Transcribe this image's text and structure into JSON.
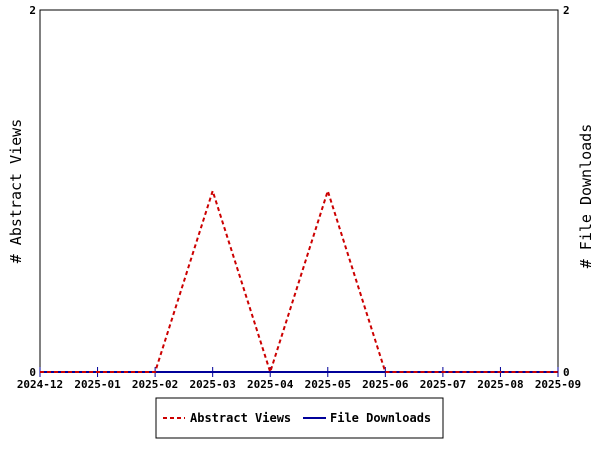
{
  "chart_data": {
    "type": "line",
    "x": [
      "2024-12",
      "2025-01",
      "2025-02",
      "2025-03",
      "2025-04",
      "2025-05",
      "2025-06",
      "2025-07",
      "2025-08",
      "2025-09"
    ],
    "x_tick_labels": [
      "2024-12",
      "2025-01",
      "2025-02",
      "2025-03",
      "2025-04",
      "2025-05",
      "2025-06",
      "2025-07",
      "2025-08",
      "2025-09"
    ],
    "series": [
      {
        "name": "Abstract Views",
        "values": [
          0,
          0,
          0,
          1,
          0,
          1,
          0,
          0,
          0,
          0
        ],
        "color": "#cc0000",
        "line_style": "dashed",
        "axis": "left"
      },
      {
        "name": "File Downloads",
        "values": [
          0,
          0,
          0,
          0,
          0,
          0,
          0,
          0,
          0,
          0
        ],
        "color": "#000099",
        "line_style": "solid",
        "axis": "right"
      }
    ],
    "ylabel": "# Abstract Views",
    "y2label": "# File Downloads",
    "ylim": [
      0,
      2
    ],
    "y2lim": [
      0,
      2
    ],
    "y_tick_labels": [
      "0",
      "2"
    ],
    "y2_tick_labels": [
      "0",
      "2"
    ],
    "grid": false,
    "legend_position": "bottom-center"
  }
}
